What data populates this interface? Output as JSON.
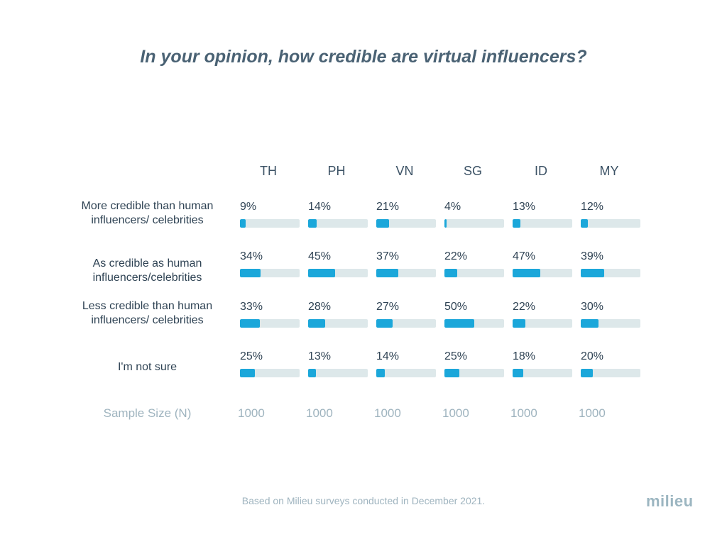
{
  "title": "In your opinion, how credible are virtual influencers?",
  "chart_data": {
    "type": "bar",
    "title": "In your opinion, how credible are virtual influencers?",
    "columns": [
      "TH",
      "PH",
      "VN",
      "SG",
      "ID",
      "MY"
    ],
    "rows": [
      {
        "label": "More credible than human influencers/ celebrities",
        "values": [
          9,
          14,
          21,
          4,
          13,
          12
        ],
        "labels": [
          "9%",
          "14%",
          "21%",
          "4%",
          "13%",
          "12%"
        ]
      },
      {
        "label": "As credible as human influencers/celebrities",
        "values": [
          34,
          45,
          37,
          22,
          47,
          39
        ],
        "labels": [
          "34%",
          "45%",
          "37%",
          "22%",
          "47%",
          "39%"
        ]
      },
      {
        "label": "Less credible than human influencers/ celebrities",
        "values": [
          33,
          28,
          27,
          50,
          22,
          30
        ],
        "labels": [
          "33%",
          "28%",
          "27%",
          "50%",
          "22%",
          "30%"
        ]
      },
      {
        "label": "I'm not sure",
        "values": [
          25,
          13,
          14,
          25,
          18,
          20
        ],
        "labels": [
          "25%",
          "13%",
          "14%",
          "25%",
          "18%",
          "20%"
        ]
      }
    ],
    "sample_size_label": "Sample Size (N)",
    "sample_sizes": [
      "1000",
      "1000",
      "1000",
      "1000",
      "1000",
      "1000"
    ],
    "value_max": 100,
    "bar_color": "#1ba7da",
    "track_color": "#dde8ea"
  },
  "footnote": "Based on Milieu surveys conducted in December 2021.",
  "logo": "milieu"
}
